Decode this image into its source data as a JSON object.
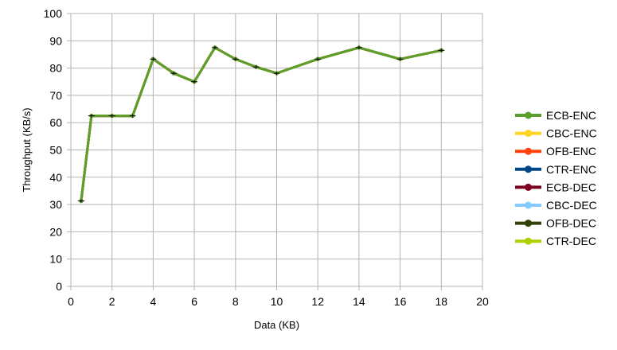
{
  "chart_data": {
    "type": "line",
    "xlabel": "Data (KB)",
    "ylabel": "Throughput (KB/s)",
    "xlim": [
      0,
      20
    ],
    "ylim": [
      0,
      100
    ],
    "x_ticks": [
      0,
      2,
      4,
      6,
      8,
      10,
      12,
      14,
      16,
      18,
      20
    ],
    "y_ticks": [
      0,
      10,
      20,
      30,
      40,
      50,
      60,
      70,
      80,
      90,
      100
    ],
    "grid": true,
    "legend_position": "right",
    "x": [
      0.5,
      1,
      2,
      3,
      4,
      5,
      6,
      7,
      8,
      9,
      10,
      12,
      14,
      16,
      18
    ],
    "series": [
      {
        "name": "ECB-ENC",
        "color": "#5a9e2c",
        "values": [
          31.3,
          62.5,
          62.5,
          62.5,
          83.3,
          78.1,
          75.0,
          87.5,
          83.3,
          80.4,
          78.1,
          83.3,
          87.5,
          83.3,
          86.5
        ]
      },
      {
        "name": "CBC-ENC",
        "color": "#ffd320",
        "values": [
          31.3,
          62.5,
          62.5,
          62.5,
          83.3,
          78.1,
          75.0,
          87.5,
          83.3,
          80.4,
          78.1,
          83.3,
          87.5,
          83.3,
          86.5
        ]
      },
      {
        "name": "OFB-ENC",
        "color": "#ff420e",
        "values": [
          31.3,
          62.5,
          62.5,
          62.5,
          83.3,
          78.1,
          75.0,
          87.5,
          83.3,
          80.4,
          78.1,
          83.3,
          87.5,
          83.3,
          86.5
        ]
      },
      {
        "name": "CTR-ENC",
        "color": "#004586",
        "values": [
          31.3,
          62.5,
          62.5,
          62.5,
          83.3,
          78.1,
          75.0,
          87.5,
          83.3,
          80.4,
          78.1,
          83.3,
          87.5,
          83.3,
          86.5
        ]
      },
      {
        "name": "ECB-DEC",
        "color": "#7e0021",
        "values": [
          31.3,
          62.5,
          62.5,
          62.5,
          83.3,
          78.1,
          75.0,
          87.5,
          83.3,
          80.4,
          78.1,
          83.3,
          87.5,
          83.3,
          86.5
        ]
      },
      {
        "name": "CBC-DEC",
        "color": "#83caff",
        "values": [
          31.3,
          62.5,
          62.5,
          62.5,
          83.3,
          78.1,
          75.0,
          87.5,
          83.3,
          80.4,
          78.1,
          83.3,
          87.5,
          83.3,
          86.5
        ]
      },
      {
        "name": "OFB-DEC",
        "color": "#314004",
        "values": [
          31.3,
          62.5,
          62.5,
          62.5,
          83.3,
          78.1,
          75.0,
          87.5,
          83.3,
          80.4,
          78.1,
          83.3,
          87.5,
          83.3,
          86.5
        ]
      },
      {
        "name": "CTR-DEC",
        "color": "#aecf00",
        "values": [
          31.3,
          62.5,
          62.5,
          62.5,
          83.3,
          78.1,
          75.0,
          87.5,
          83.3,
          80.4,
          78.1,
          83.3,
          87.5,
          83.3,
          86.5
        ]
      }
    ],
    "top_series": "ECB-ENC",
    "error_bar_color": "#000000"
  }
}
